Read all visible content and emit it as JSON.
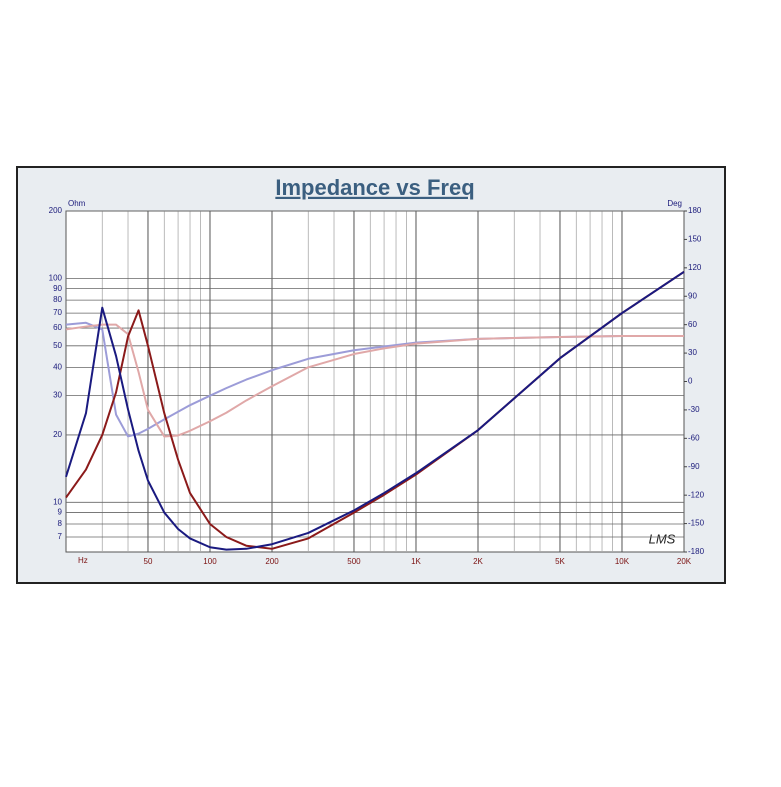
{
  "chart_data": {
    "type": "line",
    "title": "Impedance vs Freq",
    "xlabel": "Hz",
    "ylabel": "Ohm",
    "y2label": "Deg",
    "annotation": "LMS",
    "log_x": true,
    "log_y": true,
    "grid": true,
    "x": [
      20,
      25,
      30,
      35,
      40,
      45,
      50,
      60,
      70,
      80,
      100,
      120,
      150,
      200,
      300,
      500,
      700,
      1000,
      2000,
      5000,
      10000,
      20000
    ],
    "xlim": [
      20,
      20000
    ],
    "xticks": [
      50,
      100,
      200,
      500,
      {
        "value": 1000,
        "label": "1K"
      },
      {
        "value": 2000,
        "label": "2K"
      },
      {
        "value": 5000,
        "label": "5K"
      },
      {
        "value": 10000,
        "label": "10K"
      },
      {
        "value": 20000,
        "label": "20K"
      }
    ],
    "ylim": [
      6,
      200
    ],
    "yticks": [
      7,
      8,
      9,
      10,
      20,
      30,
      40,
      50,
      60,
      70,
      80,
      90,
      100,
      200
    ],
    "y2lim": [
      -180,
      180
    ],
    "y2ticks": [
      -180,
      -150,
      -120,
      -90,
      -60,
      -30,
      0,
      30,
      60,
      90,
      120,
      150,
      180
    ],
    "series": [
      {
        "color": "#9c9cd8",
        "axis": "y2",
        "values": [
          60,
          62,
          55,
          -35,
          -58,
          -55,
          -50,
          -40,
          -32,
          -25,
          -15,
          -7,
          2,
          12,
          24,
          33,
          37,
          41,
          45,
          47,
          48,
          48
        ]
      },
      {
        "color": "#e0a8a8",
        "axis": "y2",
        "values": [
          55,
          58,
          60,
          60,
          50,
          10,
          -30,
          -58,
          -57,
          -52,
          -42,
          -33,
          -20,
          -5,
          15,
          29,
          35,
          40,
          45,
          47,
          48,
          48
        ]
      },
      {
        "color": "#8b1a1a",
        "values": [
          10.5,
          14,
          20,
          31,
          55,
          72,
          50,
          25,
          15.5,
          11,
          8,
          7,
          6.4,
          6.2,
          6.9,
          9,
          10.8,
          13.3,
          21,
          44,
          70,
          107
        ]
      },
      {
        "color": "#1a1a80",
        "values": [
          13,
          25,
          74,
          45,
          26,
          17,
          12.5,
          9,
          7.6,
          6.9,
          6.3,
          6.15,
          6.2,
          6.5,
          7.3,
          9.2,
          11,
          13.5,
          21,
          44,
          70,
          107
        ]
      }
    ]
  }
}
